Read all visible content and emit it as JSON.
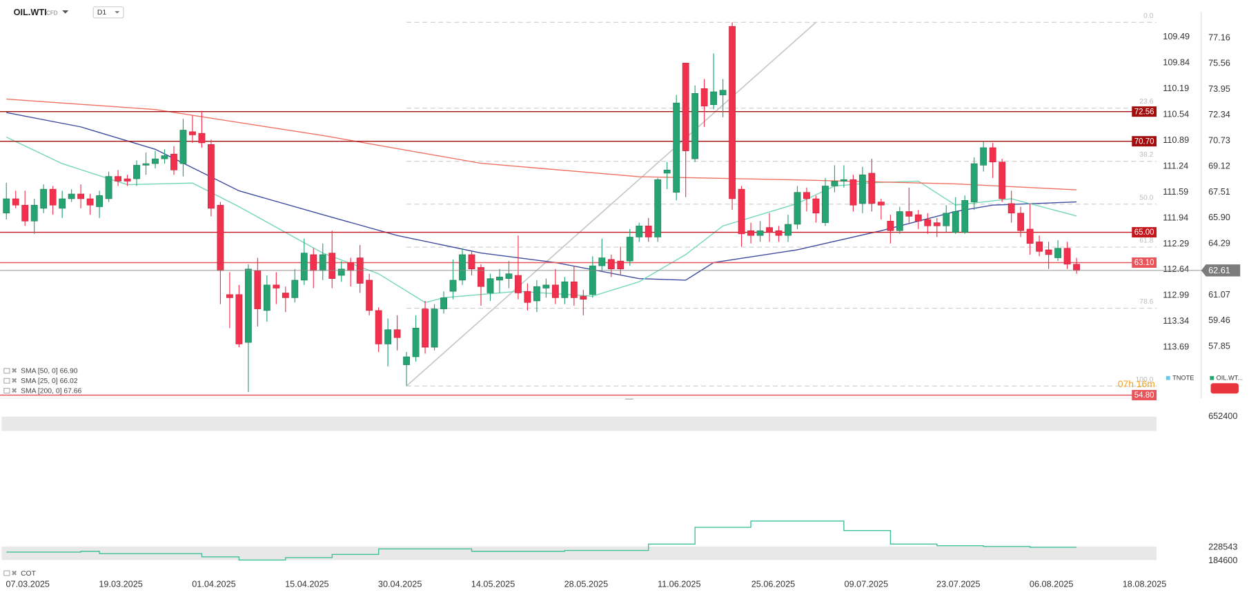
{
  "header": {
    "symbol": "OIL.WTI",
    "instrument_type": "CFD",
    "timeframe": "D1"
  },
  "chart_data": [
    {
      "type": "candlestick",
      "ohlc": [
        [
          66.2,
          68.1,
          65.8,
          67.1
        ],
        [
          67.1,
          67.6,
          66.5,
          66.7
        ],
        [
          66.7,
          67.6,
          65.4,
          65.7
        ],
        [
          65.7,
          67.1,
          64.9,
          66.7
        ],
        [
          66.5,
          68.0,
          66.2,
          67.7
        ],
        [
          67.7,
          67.9,
          66.1,
          66.7
        ],
        [
          66.5,
          67.6,
          65.9,
          67.1
        ],
        [
          67.1,
          67.7,
          66.9,
          67.4
        ],
        [
          67.4,
          68.0,
          66.5,
          67.1
        ],
        [
          67.1,
          67.4,
          66.1,
          66.7
        ],
        [
          66.6,
          67.6,
          65.9,
          67.3
        ],
        [
          67.1,
          68.8,
          66.9,
          68.5
        ],
        [
          68.5,
          68.9,
          67.9,
          68.2
        ],
        [
          68.35,
          68.6,
          67.9,
          68.2
        ],
        [
          68.35,
          69.5,
          67.9,
          69.2
        ],
        [
          69.2,
          70.0,
          68.6,
          69.3
        ],
        [
          69.3,
          70.1,
          69.0,
          69.6
        ],
        [
          69.6,
          70.2,
          69.3,
          69.8
        ],
        [
          69.9,
          70.4,
          68.6,
          68.9
        ],
        [
          69.3,
          72.1,
          68.5,
          71.4
        ],
        [
          71.3,
          72.3,
          70.6,
          71.1
        ],
        [
          71.2,
          72.6,
          70.3,
          70.6
        ],
        [
          70.5,
          70.8,
          66.0,
          66.5
        ],
        [
          66.7,
          66.9,
          60.5,
          62.6
        ],
        [
          61.1,
          62.5,
          59.0,
          60.9
        ],
        [
          61.1,
          61.7,
          57.8,
          58.0
        ],
        [
          58.1,
          63.0,
          55.0,
          62.7
        ],
        [
          62.6,
          63.4,
          59.1,
          60.2
        ],
        [
          60.1,
          62.3,
          59.4,
          61.7
        ],
        [
          61.7,
          62.5,
          60.5,
          61.5
        ],
        [
          61.2,
          61.6,
          60.0,
          60.9
        ],
        [
          60.9,
          62.7,
          60.6,
          62.0
        ],
        [
          62.0,
          64.6,
          61.7,
          63.7
        ],
        [
          63.6,
          64.0,
          61.5,
          62.6
        ],
        [
          62.6,
          64.3,
          62.0,
          63.6
        ],
        [
          63.7,
          65.1,
          61.5,
          62.1
        ],
        [
          62.3,
          63.2,
          61.9,
          62.7
        ],
        [
          63.1,
          63.4,
          61.6,
          62.6
        ],
        [
          63.4,
          64.2,
          61.2,
          61.8
        ],
        [
          62.0,
          62.4,
          59.8,
          60.1
        ],
        [
          60.1,
          60.3,
          57.5,
          58.0
        ],
        [
          58.0,
          59.6,
          56.6,
          58.9
        ],
        [
          58.9,
          59.8,
          57.6,
          58.4
        ],
        [
          56.7,
          57.5,
          55.37,
          57.2
        ],
        [
          57.2,
          59.8,
          56.9,
          59.0
        ],
        [
          60.2,
          60.7,
          57.4,
          57.8
        ],
        [
          57.8,
          60.5,
          57.6,
          60.2
        ],
        [
          60.2,
          61.3,
          59.9,
          60.9
        ],
        [
          61.3,
          63.3,
          60.8,
          62.0
        ],
        [
          62.0,
          64.0,
          61.7,
          63.6
        ],
        [
          63.6,
          63.8,
          62.3,
          62.7
        ],
        [
          62.8,
          63.0,
          60.4,
          61.6
        ],
        [
          61.2,
          62.4,
          60.7,
          62.1
        ],
        [
          62.0,
          62.7,
          61.2,
          62.2
        ],
        [
          62.1,
          63.2,
          61.5,
          62.4
        ],
        [
          62.3,
          64.8,
          60.8,
          61.2
        ],
        [
          61.3,
          61.8,
          60.1,
          60.6
        ],
        [
          60.7,
          62.0,
          60.0,
          61.6
        ],
        [
          61.5,
          62.1,
          60.9,
          61.7
        ],
        [
          61.7,
          62.7,
          60.5,
          60.9
        ],
        [
          60.9,
          62.2,
          60.5,
          61.9
        ],
        [
          61.9,
          62.9,
          60.4,
          60.9
        ],
        [
          61.0,
          61.4,
          59.8,
          60.8
        ],
        [
          61.1,
          63.5,
          60.9,
          62.9
        ],
        [
          62.9,
          64.6,
          62.6,
          63.4
        ],
        [
          63.3,
          63.6,
          62.2,
          62.7
        ],
        [
          63.2,
          64.1,
          62.3,
          62.7
        ],
        [
          63.2,
          65.2,
          62.9,
          64.7
        ],
        [
          64.7,
          65.6,
          64.4,
          65.4
        ],
        [
          65.4,
          65.9,
          64.4,
          64.7
        ],
        [
          64.7,
          68.4,
          64.4,
          68.3
        ],
        [
          68.7,
          69.4,
          67.7,
          68.9
        ],
        [
          67.5,
          73.6,
          67.0,
          73.1
        ],
        [
          75.6,
          75.6,
          67.2,
          70.1
        ],
        [
          69.6,
          74.2,
          69.4,
          73.7
        ],
        [
          74.0,
          74.6,
          71.6,
          72.9
        ],
        [
          72.99,
          76.2,
          72.7,
          73.8
        ],
        [
          73.6,
          74.6,
          72.2,
          73.9
        ],
        [
          77.9,
          78.15,
          66.4,
          67.1
        ],
        [
          67.7,
          67.9,
          64.1,
          64.9
        ],
        [
          65.1,
          65.6,
          64.3,
          64.8
        ],
        [
          64.8,
          65.7,
          64.4,
          65.1
        ],
        [
          65.3,
          66.2,
          64.4,
          65.0
        ],
        [
          65.1,
          65.4,
          64.4,
          64.8
        ],
        [
          64.8,
          66.1,
          64.4,
          65.5
        ],
        [
          65.5,
          67.9,
          65.2,
          67.5
        ],
        [
          67.5,
          67.8,
          66.3,
          67.1
        ],
        [
          67.1,
          67.3,
          65.6,
          66.2
        ],
        [
          65.6,
          68.4,
          65.4,
          67.9
        ],
        [
          67.9,
          69.2,
          67.5,
          68.2
        ],
        [
          68.2,
          69.2,
          67.8,
          68.3
        ],
        [
          68.3,
          68.6,
          66.3,
          66.7
        ],
        [
          66.8,
          69.1,
          66.2,
          68.6
        ],
        [
          68.7,
          69.6,
          66.3,
          66.8
        ],
        [
          66.9,
          67.1,
          65.8,
          66.7
        ],
        [
          65.7,
          66.1,
          64.3,
          65.1
        ],
        [
          65.1,
          66.6,
          64.9,
          66.3
        ],
        [
          66.3,
          67.8,
          65.6,
          66.0
        ],
        [
          66.1,
          66.4,
          65.2,
          65.7
        ],
        [
          65.8,
          66.2,
          64.9,
          65.4
        ],
        [
          65.6,
          65.9,
          64.7,
          65.4
        ],
        [
          65.4,
          66.7,
          65.0,
          66.2
        ],
        [
          65.0,
          67.2,
          64.9,
          66.3
        ],
        [
          65.0,
          67.3,
          64.9,
          67.0
        ],
        [
          66.9,
          69.7,
          66.4,
          69.3
        ],
        [
          69.2,
          70.7,
          68.8,
          70.3
        ],
        [
          70.3,
          70.6,
          68.4,
          69.4
        ],
        [
          69.4,
          69.6,
          66.9,
          67.1
        ],
        [
          66.8,
          67.6,
          65.6,
          66.2
        ],
        [
          66.2,
          66.6,
          64.7,
          65.1
        ],
        [
          65.2,
          66.8,
          63.6,
          64.3
        ],
        [
          64.4,
          64.8,
          63.5,
          63.8
        ],
        [
          63.9,
          64.4,
          62.7,
          63.6
        ],
        [
          63.4,
          64.5,
          63.2,
          64.0
        ],
        [
          64.0,
          64.4,
          62.7,
          63.0
        ],
        [
          63.0,
          63.4,
          62.4,
          62.61
        ]
      ],
      "up_color": "#26a372",
      "down_color": "#f0304c",
      "xlim": [
        -0.68,
        123.6
      ],
      "xticks": [
        {
          "value": 2.3,
          "label": "07.03.2025"
        },
        {
          "value": 12.3,
          "label": "19.03.2025"
        },
        {
          "value": 22.3,
          "label": "01.04.2025"
        },
        {
          "value": 32.3,
          "label": "15.04.2025"
        },
        {
          "value": 42.3,
          "label": "30.04.2025"
        },
        {
          "value": 52.3,
          "label": "14.05.2025"
        },
        {
          "value": 62.3,
          "label": "28.05.2025"
        },
        {
          "value": 72.3,
          "label": "11.06.2025"
        },
        {
          "value": 82.4,
          "label": "25.06.2025"
        },
        {
          "value": 92.4,
          "label": "09.07.2025"
        },
        {
          "value": 102.3,
          "label": "23.07.2025"
        },
        {
          "value": 112.3,
          "label": "06.08.2025"
        },
        {
          "value": 122.3,
          "label": "18.08.2025"
        }
      ],
      "ylim": [
        54.6,
        78.8
      ],
      "yticks": [
        77.16,
        75.56,
        73.95,
        72.34,
        70.73,
        69.12,
        67.51,
        {
          "value": 65.9,
          "label": "65.90"
        },
        64.29,
        61.07,
        59.46,
        57.85
      ],
      "y2lim": [
        109.15,
        114.38
      ],
      "y2_inverted": true,
      "y2ticks": [
        109.49,
        109.84,
        110.19,
        110.54,
        110.89,
        111.24,
        111.59,
        111.94,
        112.29,
        112.64,
        112.99,
        113.34,
        113.69
      ],
      "current_price": 62.61,
      "levels": [
        {
          "value": 72.56,
          "label": "72.56",
          "color": "#a30d0d"
        },
        {
          "value": 70.7,
          "label": "70.70",
          "color": "#a30d0d"
        },
        {
          "value": 65,
          "label": "65.00",
          "color": "#c4161c"
        },
        {
          "value": 63.1,
          "label": "63.10",
          "color": "#e8545a"
        },
        {
          "value": 54.8,
          "label": "54.80",
          "color": "#e8545a"
        }
      ],
      "series": [
        {
          "name": "SMA [50, 0] 66.90",
          "color": "#3d4b9e",
          "x": [
            0,
            8,
            16,
            25,
            34,
            42,
            51,
            59,
            68,
            73,
            76,
            85,
            94,
            102,
            106,
            115
          ],
          "values": [
            72.5,
            71.6,
            70.2,
            67.6,
            66.1,
            64.8,
            63.7,
            63.1,
            62.1,
            62.0,
            63.1,
            63.9,
            65.1,
            66.3,
            66.7,
            66.9
          ]
        },
        {
          "name": "SMA [25, 0] 66.02",
          "color": "#72d6b6",
          "x": [
            0,
            6,
            13,
            20,
            25,
            34,
            40,
            45,
            47,
            55,
            63,
            68,
            73,
            77,
            85,
            89,
            93,
            98,
            102,
            108,
            115
          ],
          "values": [
            70.96,
            69.3,
            67.98,
            68.08,
            66.6,
            63.7,
            62.4,
            60.6,
            60.9,
            61.3,
            61.0,
            61.9,
            63.6,
            65.4,
            66.8,
            67.9,
            68.1,
            68.2,
            66.7,
            67.1,
            66.02
          ]
        },
        {
          "name": "SMA [200, 0] 67.66",
          "color": "#f07060",
          "x": [
            0,
            16,
            34,
            51,
            68,
            85,
            102,
            115
          ],
          "values": [
            73.34,
            72.69,
            71.06,
            69.32,
            68.48,
            68.28,
            68.03,
            67.66
          ]
        }
      ],
      "fib": {
        "x": [
          43,
          87
        ],
        "values": [
          55.37,
          78.15
        ],
        "levels": [
          {
            "value": 0,
            "label": "0.0"
          },
          23.6,
          38.2,
          {
            "value": 50,
            "label": "50.0"
          },
          61.8,
          78.6,
          {
            "value": 100,
            "label": "100.0"
          }
        ]
      },
      "legend": [
        "TNOTE",
        "OIL.WT..."
      ],
      "countdown": "07h 16m"
    },
    {
      "type": "line",
      "step": true,
      "name": "COT",
      "color": "#3dbf9a",
      "x": [
        0,
        8,
        10,
        21,
        25,
        30,
        35,
        40,
        50,
        60,
        69,
        74,
        80,
        90,
        95,
        100,
        105,
        110,
        115
      ],
      "values": [
        213035,
        215620,
        207865,
        197525,
        187185,
        194940,
        205280,
        223375,
        215620,
        218205,
        238885,
        293170,
        313850,
        282830,
        238885,
        233715,
        231130,
        228543,
        228543
      ],
      "ylim": [
        184600,
        652400
      ],
      "yticks": [
        652400,
        228543,
        184600
      ]
    }
  ]
}
